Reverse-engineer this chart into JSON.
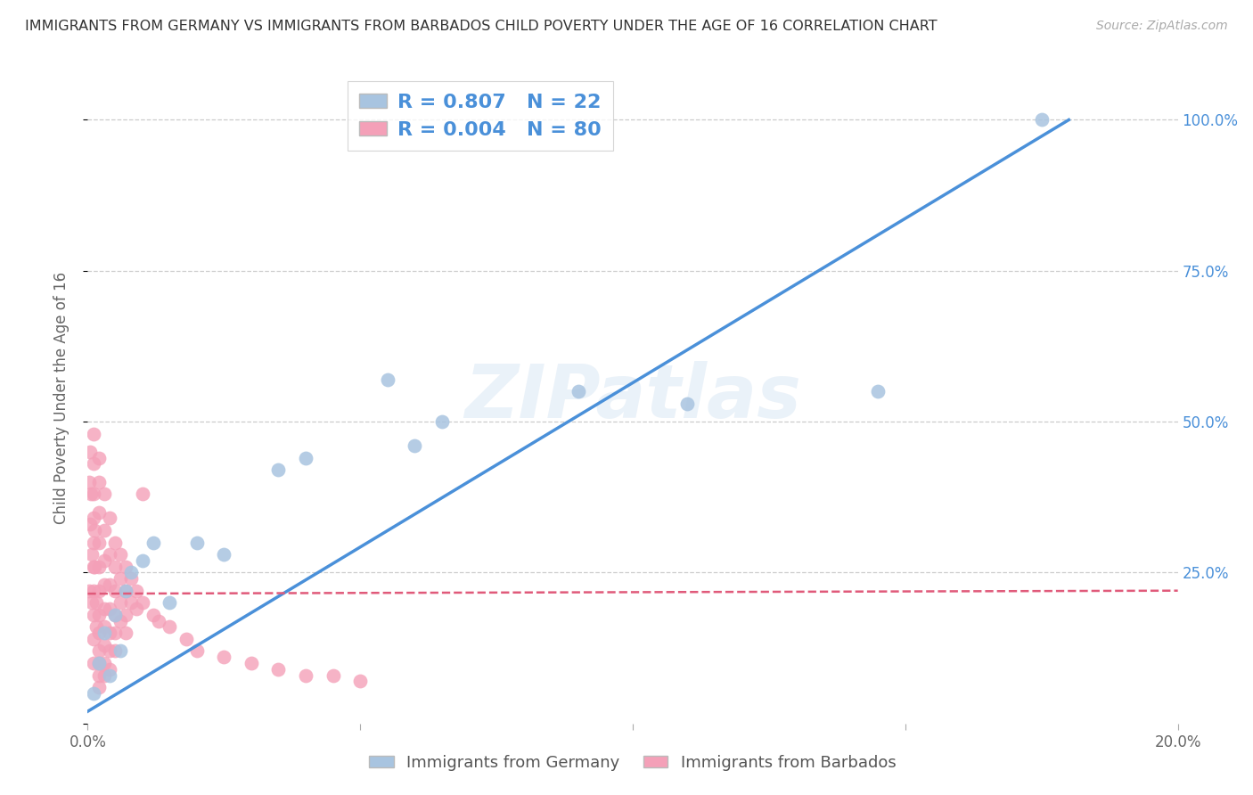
{
  "title": "IMMIGRANTS FROM GERMANY VS IMMIGRANTS FROM BARBADOS CHILD POVERTY UNDER THE AGE OF 16 CORRELATION CHART",
  "source": "Source: ZipAtlas.com",
  "ylabel": "Child Poverty Under the Age of 16",
  "watermark": "ZIPatlas",
  "germany_R": 0.807,
  "germany_N": 22,
  "barbados_R": 0.004,
  "barbados_N": 80,
  "germany_color": "#a8c4e0",
  "barbados_color": "#f4a0b8",
  "germany_line_color": "#4a90d9",
  "barbados_line_color": "#e05a7a",
  "germany_scatter_x": [
    0.001,
    0.002,
    0.003,
    0.004,
    0.005,
    0.006,
    0.007,
    0.008,
    0.01,
    0.012,
    0.015,
    0.02,
    0.025,
    0.035,
    0.04,
    0.055,
    0.06,
    0.065,
    0.09,
    0.11,
    0.145,
    0.175
  ],
  "germany_scatter_y": [
    0.05,
    0.1,
    0.15,
    0.08,
    0.18,
    0.12,
    0.22,
    0.25,
    0.27,
    0.3,
    0.2,
    0.3,
    0.28,
    0.42,
    0.44,
    0.57,
    0.46,
    0.5,
    0.55,
    0.53,
    0.55,
    1.0
  ],
  "barbados_scatter_x": [
    0.0002,
    0.0003,
    0.0004,
    0.0005,
    0.0006,
    0.0007,
    0.0008,
    0.001,
    0.001,
    0.001,
    0.001,
    0.001,
    0.001,
    0.001,
    0.001,
    0.001,
    0.001,
    0.0012,
    0.0013,
    0.0015,
    0.0015,
    0.002,
    0.002,
    0.002,
    0.002,
    0.002,
    0.002,
    0.002,
    0.002,
    0.002,
    0.002,
    0.002,
    0.002,
    0.003,
    0.003,
    0.003,
    0.003,
    0.003,
    0.003,
    0.003,
    0.003,
    0.003,
    0.004,
    0.004,
    0.004,
    0.004,
    0.004,
    0.004,
    0.004,
    0.005,
    0.005,
    0.005,
    0.005,
    0.005,
    0.005,
    0.006,
    0.006,
    0.006,
    0.006,
    0.007,
    0.007,
    0.007,
    0.007,
    0.008,
    0.008,
    0.009,
    0.009,
    0.01,
    0.01,
    0.012,
    0.013,
    0.015,
    0.018,
    0.02,
    0.025,
    0.03,
    0.035,
    0.04,
    0.045,
    0.05
  ],
  "barbados_scatter_y": [
    0.22,
    0.4,
    0.33,
    0.45,
    0.38,
    0.28,
    0.2,
    0.48,
    0.43,
    0.38,
    0.34,
    0.3,
    0.26,
    0.22,
    0.18,
    0.14,
    0.1,
    0.32,
    0.26,
    0.2,
    0.16,
    0.44,
    0.4,
    0.35,
    0.3,
    0.26,
    0.22,
    0.18,
    0.15,
    0.12,
    0.1,
    0.08,
    0.06,
    0.38,
    0.32,
    0.27,
    0.23,
    0.19,
    0.16,
    0.13,
    0.1,
    0.08,
    0.34,
    0.28,
    0.23,
    0.19,
    0.15,
    0.12,
    0.09,
    0.3,
    0.26,
    0.22,
    0.18,
    0.15,
    0.12,
    0.28,
    0.24,
    0.2,
    0.17,
    0.26,
    0.22,
    0.18,
    0.15,
    0.24,
    0.2,
    0.22,
    0.19,
    0.38,
    0.2,
    0.18,
    0.17,
    0.16,
    0.14,
    0.12,
    0.11,
    0.1,
    0.09,
    0.08,
    0.08,
    0.07
  ],
  "xmin": 0.0,
  "xmax": 0.2,
  "ymin": 0.0,
  "ymax": 1.08,
  "yticks": [
    0.0,
    0.25,
    0.5,
    0.75,
    1.0
  ],
  "xticks": [
    0.0,
    0.05,
    0.1,
    0.15,
    0.2
  ],
  "xtick_labels": [
    "0.0%",
    "",
    "",
    "",
    "20.0%"
  ],
  "ytick_right_labels": [
    "",
    "25.0%",
    "50.0%",
    "75.0%",
    "100.0%"
  ],
  "germany_line_x0": 0.0,
  "germany_line_y0": 0.02,
  "germany_line_x1": 0.18,
  "germany_line_y1": 1.0,
  "barbados_line_x0": 0.0,
  "barbados_line_y0": 0.215,
  "barbados_line_x1": 0.2,
  "barbados_line_y1": 0.22,
  "background_color": "#ffffff",
  "grid_color": "#cccccc"
}
